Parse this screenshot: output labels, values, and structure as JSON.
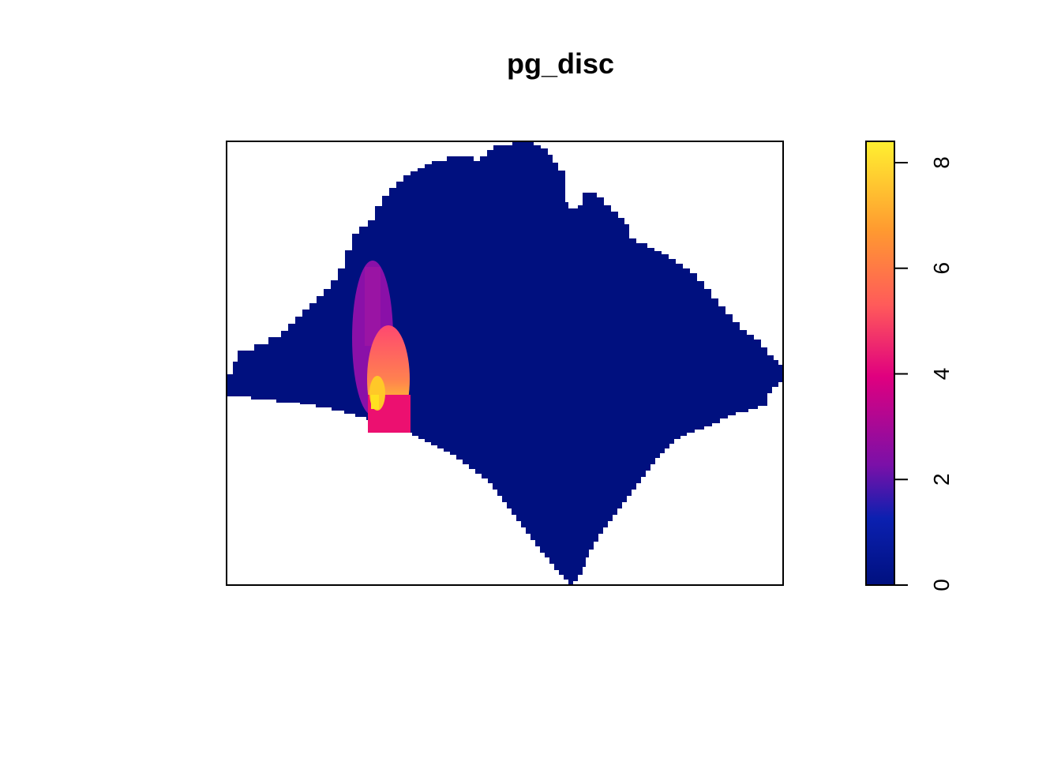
{
  "chart_data": {
    "type": "heatmap",
    "title": "pg_disc",
    "xlabel": "",
    "ylabel": "",
    "background_value": 0,
    "legend": {
      "position": "right",
      "range": [
        0,
        8.4
      ],
      "ticks": [
        0,
        2,
        4,
        6,
        8
      ],
      "tick_labels": [
        "0",
        "2",
        "4",
        "6",
        "8"
      ],
      "colors": [
        "#00107F",
        "#0B20B0",
        "#7A10A8",
        "#E0007F",
        "#FF5A5A",
        "#FF9A30",
        "#FFF030"
      ]
    },
    "hotspots": [
      {
        "name": "",
        "peak_value": 2.2,
        "shape": "ellipse"
      },
      {
        "name": "",
        "peak_value": 8.3,
        "shape": "ellipse"
      }
    ]
  }
}
